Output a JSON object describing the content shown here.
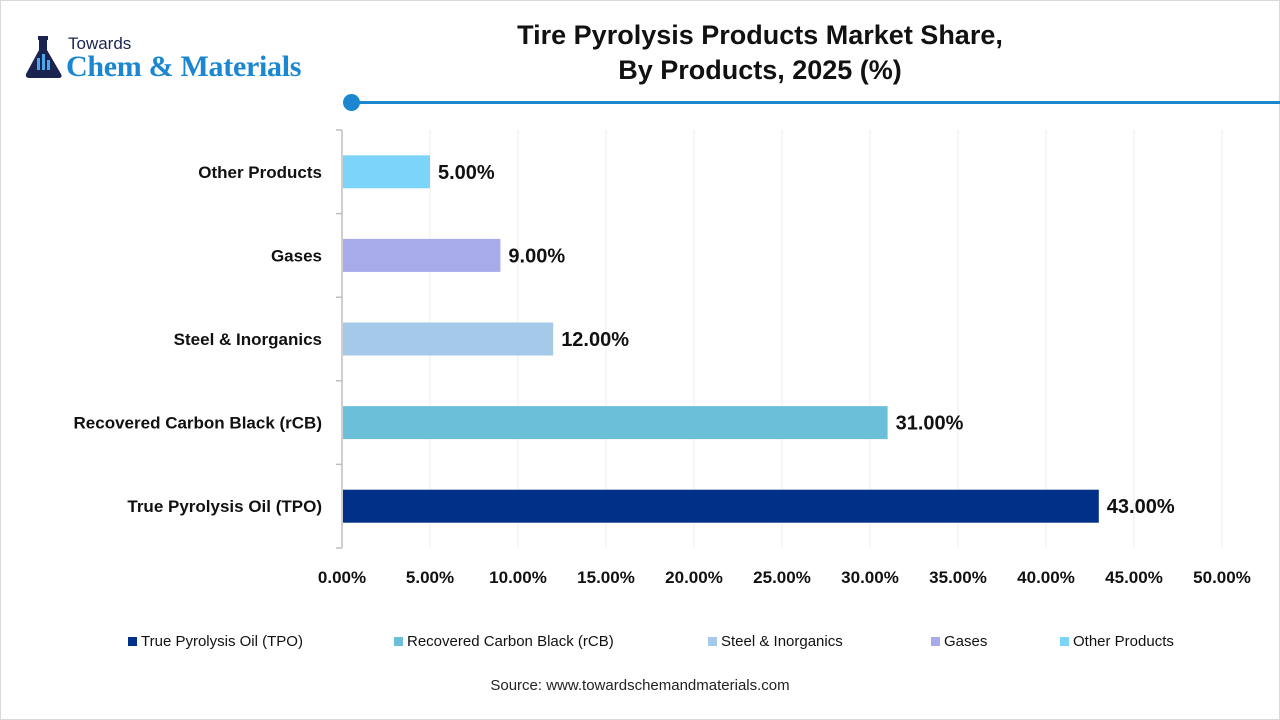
{
  "logo": {
    "line1": "Towards",
    "line2": "Chem & Materials",
    "icon": "flask-icon"
  },
  "title_lines": [
    "Tire Pyrolysis Products Market Share,",
    "By Products, 2025 (%)"
  ],
  "chart_data": {
    "type": "bar",
    "orientation": "horizontal",
    "title": "Tire Pyrolysis Products Market Share, By Products, 2025 (%)",
    "categories": [
      "True Pyrolysis Oil (TPO)",
      "Recovered Carbon Black (rCB)",
      "Steel & Inorganics",
      "Gases",
      "Other Products"
    ],
    "values": [
      43,
      31,
      12,
      9,
      5
    ],
    "data_labels": [
      "43.00%",
      "31.00%",
      "12.00%",
      "9.00%",
      "5.00%"
    ],
    "colors": [
      "#003087",
      "#6bbfd9",
      "#a5c9e8",
      "#a8abea",
      "#7dd4fb"
    ],
    "xlim": [
      0,
      50
    ],
    "x_ticks": [
      "0.00%",
      "5.00%",
      "10.00%",
      "15.00%",
      "20.00%",
      "25.00%",
      "30.00%",
      "35.00%",
      "40.00%",
      "45.00%",
      "50.00%"
    ],
    "grid": "vertical",
    "legend": "bottom",
    "xlabel": "",
    "ylabel": ""
  },
  "source": "Source: www.towardschemandmaterials.com"
}
